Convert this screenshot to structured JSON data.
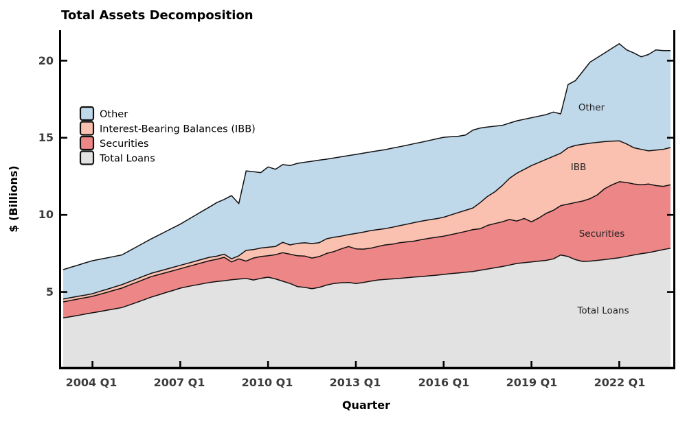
{
  "title": "Total Assets Decomposition",
  "x_axis": {
    "label": "Quarter"
  },
  "y_axis": {
    "label": "$ (Billions)",
    "tick_labels": [
      "5",
      "10",
      "15",
      "20"
    ]
  },
  "legend": {
    "items": [
      {
        "label": "Other",
        "color": "#BFD8EA"
      },
      {
        "label": "Interest-Bearing Balances (IBB)",
        "color": "#FAC0B0"
      },
      {
        "label": "Securities",
        "color": "#EC8687"
      },
      {
        "label": "Total Loans",
        "color": "#E2E2E2"
      }
    ]
  },
  "annotations": {
    "other": "Other",
    "ibb": "IBB",
    "securities": "Securities",
    "total_loans": "Total Loans"
  },
  "chart_data": {
    "type": "area",
    "stacked": true,
    "title": "Total Assets Decomposition",
    "xlabel": "Quarter",
    "ylabel": "$ (Billions)",
    "ylim": [
      0,
      22
    ],
    "grid": false,
    "legend_position": "upper left",
    "edge_color": "#101010",
    "x": [
      "2003 Q1",
      "2003 Q2",
      "2003 Q3",
      "2003 Q4",
      "2004 Q1",
      "2004 Q2",
      "2004 Q3",
      "2004 Q4",
      "2005 Q1",
      "2005 Q2",
      "2005 Q3",
      "2005 Q4",
      "2006 Q1",
      "2006 Q2",
      "2006 Q3",
      "2006 Q4",
      "2007 Q1",
      "2007 Q2",
      "2007 Q3",
      "2007 Q4",
      "2008 Q1",
      "2008 Q2",
      "2008 Q3",
      "2008 Q4",
      "2009 Q1",
      "2009 Q2",
      "2009 Q3",
      "2009 Q4",
      "2010 Q1",
      "2010 Q2",
      "2010 Q3",
      "2010 Q4",
      "2011 Q1",
      "2011 Q2",
      "2011 Q3",
      "2011 Q4",
      "2012 Q1",
      "2012 Q2",
      "2012 Q3",
      "2012 Q4",
      "2013 Q1",
      "2013 Q2",
      "2013 Q3",
      "2013 Q4",
      "2014 Q1",
      "2014 Q2",
      "2014 Q3",
      "2014 Q4",
      "2015 Q1",
      "2015 Q2",
      "2015 Q3",
      "2015 Q4",
      "2016 Q1",
      "2016 Q2",
      "2016 Q3",
      "2016 Q4",
      "2017 Q1",
      "2017 Q2",
      "2017 Q3",
      "2017 Q4",
      "2018 Q1",
      "2018 Q2",
      "2018 Q3",
      "2018 Q4",
      "2019 Q1",
      "2019 Q2",
      "2019 Q3",
      "2019 Q4",
      "2020 Q1",
      "2020 Q2",
      "2020 Q3",
      "2020 Q4",
      "2021 Q1",
      "2021 Q2",
      "2021 Q3",
      "2021 Q4",
      "2022 Q1",
      "2022 Q2",
      "2022 Q3",
      "2022 Q4",
      "2023 Q1",
      "2023 Q2",
      "2023 Q3",
      "2023 Q4"
    ],
    "x_tick_indices": [
      4,
      16,
      28,
      40,
      52,
      64,
      76
    ],
    "x_tick_labels": [
      "2004 Q1",
      "2007 Q1",
      "2010 Q1",
      "2013 Q1",
      "2016 Q1",
      "2019 Q1",
      "2022 Q1"
    ],
    "y_ticks": [
      5,
      10,
      15,
      20
    ],
    "series": [
      {
        "name": "Total Loans",
        "color": "#E2E2E2",
        "values": [
          3.32,
          3.4,
          3.48,
          3.57,
          3.65,
          3.73,
          3.82,
          3.9,
          3.99,
          4.15,
          4.32,
          4.49,
          4.66,
          4.81,
          4.96,
          5.1,
          5.25,
          5.35,
          5.44,
          5.53,
          5.62,
          5.68,
          5.73,
          5.79,
          5.84,
          5.88,
          5.78,
          5.88,
          5.96,
          5.85,
          5.7,
          5.55,
          5.35,
          5.3,
          5.22,
          5.3,
          5.45,
          5.55,
          5.6,
          5.62,
          5.55,
          5.62,
          5.7,
          5.78,
          5.82,
          5.85,
          5.88,
          5.93,
          5.97,
          6.0,
          6.05,
          6.09,
          6.14,
          6.19,
          6.23,
          6.28,
          6.33,
          6.41,
          6.49,
          6.57,
          6.65,
          6.75,
          6.85,
          6.9,
          6.95,
          7.0,
          7.05,
          7.15,
          7.4,
          7.3,
          7.1,
          6.98,
          7.0,
          7.05,
          7.1,
          7.16,
          7.22,
          7.31,
          7.4,
          7.48,
          7.55,
          7.65,
          7.75,
          7.84
        ]
      },
      {
        "name": "Securities",
        "color": "#EC8687",
        "values": [
          1.04,
          1.05,
          1.06,
          1.06,
          1.07,
          1.12,
          1.16,
          1.22,
          1.26,
          1.29,
          1.3,
          1.32,
          1.33,
          1.31,
          1.29,
          1.28,
          1.26,
          1.29,
          1.33,
          1.37,
          1.41,
          1.44,
          1.52,
          1.16,
          1.31,
          1.12,
          1.42,
          1.42,
          1.39,
          1.57,
          1.85,
          1.9,
          2.0,
          2.03,
          1.98,
          2.0,
          2.05,
          2.07,
          2.2,
          2.33,
          2.25,
          2.16,
          2.14,
          2.17,
          2.23,
          2.25,
          2.32,
          2.32,
          2.33,
          2.4,
          2.43,
          2.46,
          2.48,
          2.53,
          2.59,
          2.65,
          2.72,
          2.69,
          2.83,
          2.87,
          2.9,
          2.95,
          2.75,
          2.87,
          2.6,
          2.8,
          3.05,
          3.15,
          3.2,
          3.4,
          3.7,
          3.92,
          4.05,
          4.25,
          4.6,
          4.79,
          4.93,
          4.79,
          4.6,
          4.47,
          4.45,
          4.25,
          4.1,
          4.11
        ]
      },
      {
        "name": "Interest-Bearing Balances (IBB)",
        "color": "#FAC0B0",
        "values": [
          0.18,
          0.18,
          0.18,
          0.17,
          0.17,
          0.19,
          0.2,
          0.21,
          0.22,
          0.22,
          0.22,
          0.22,
          0.22,
          0.22,
          0.22,
          0.22,
          0.22,
          0.22,
          0.22,
          0.22,
          0.22,
          0.2,
          0.2,
          0.2,
          0.2,
          0.7,
          0.55,
          0.55,
          0.55,
          0.53,
          0.67,
          0.6,
          0.8,
          0.86,
          0.94,
          0.9,
          0.95,
          0.93,
          0.82,
          0.77,
          1.0,
          1.1,
          1.14,
          1.1,
          1.06,
          1.1,
          1.1,
          1.15,
          1.2,
          1.2,
          1.2,
          1.2,
          1.23,
          1.28,
          1.33,
          1.37,
          1.4,
          1.7,
          1.88,
          2.06,
          2.35,
          2.67,
          3.1,
          3.18,
          3.65,
          3.6,
          3.5,
          3.5,
          3.4,
          3.65,
          3.7,
          3.68,
          3.6,
          3.4,
          3.05,
          2.83,
          2.65,
          2.5,
          2.35,
          2.3,
          2.15,
          2.3,
          2.4,
          2.42
        ]
      },
      {
        "name": "Other",
        "color": "#BFD8EA",
        "values": [
          1.91,
          1.97,
          2.02,
          2.09,
          2.14,
          2.08,
          2.03,
          1.98,
          1.93,
          2.0,
          2.08,
          2.15,
          2.23,
          2.34,
          2.45,
          2.56,
          2.67,
          2.82,
          2.97,
          3.12,
          3.26,
          3.48,
          3.55,
          4.1,
          3.38,
          5.15,
          5.05,
          4.89,
          5.21,
          5.01,
          5.04,
          5.15,
          5.19,
          5.22,
          5.34,
          5.35,
          5.16,
          5.14,
          5.15,
          5.13,
          5.12,
          5.12,
          5.1,
          5.11,
          5.12,
          5.13,
          5.12,
          5.12,
          5.12,
          5.12,
          5.14,
          5.18,
          5.18,
          5.07,
          4.95,
          4.88,
          5.05,
          4.83,
          4.5,
          4.25,
          3.9,
          3.58,
          3.4,
          3.25,
          3.1,
          3.0,
          2.9,
          2.87,
          2.55,
          4.1,
          4.2,
          4.72,
          5.25,
          5.5,
          5.75,
          6.02,
          6.3,
          6.1,
          6.15,
          6.0,
          6.25,
          6.5,
          6.4,
          6.28
        ]
      }
    ]
  }
}
